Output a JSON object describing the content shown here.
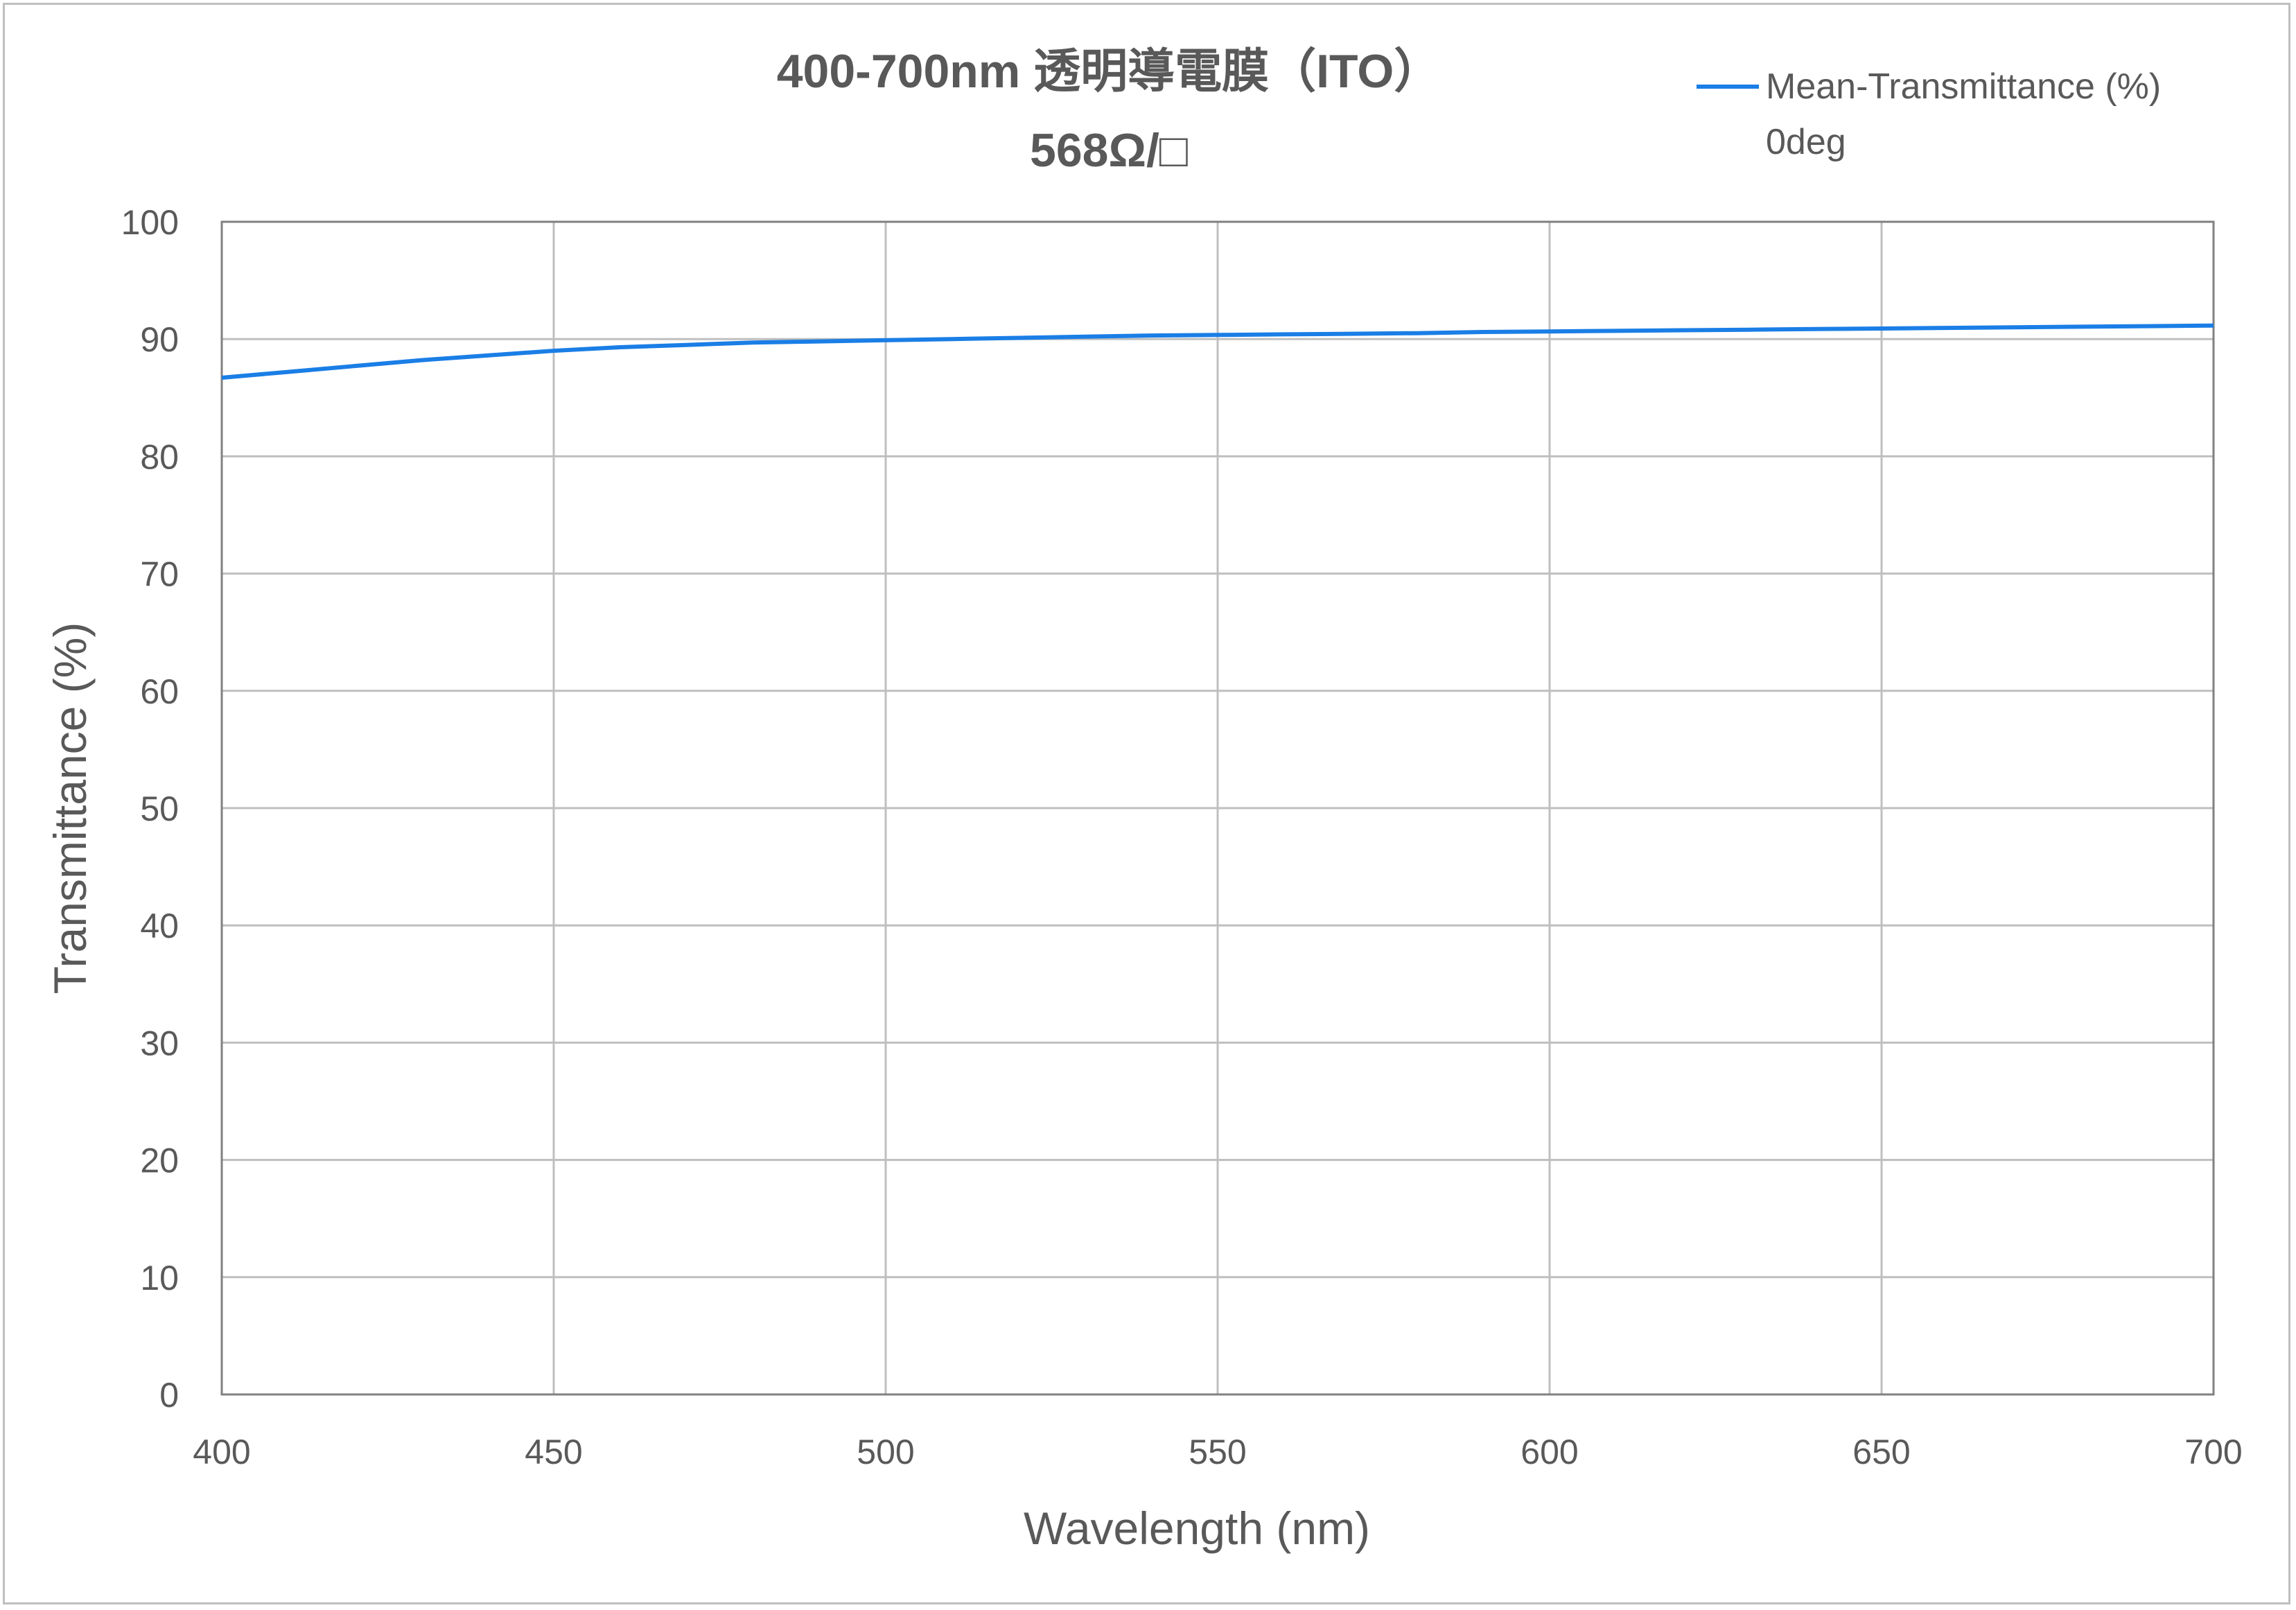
{
  "chart_data": {
    "type": "line",
    "title": "400-700nm 透明導電膜（ITO）",
    "subtitle": "568Ω/□",
    "xlabel": "Wavelength (nm)",
    "ylabel": "Transmittance (%)",
    "xlim": [
      400,
      700
    ],
    "ylim": [
      0,
      100
    ],
    "x_ticks": [
      "400",
      "450",
      "500",
      "550",
      "600",
      "650",
      "700"
    ],
    "y_ticks": [
      "0",
      "10",
      "20",
      "30",
      "40",
      "50",
      "60",
      "70",
      "80",
      "90",
      "100"
    ],
    "grid": true,
    "legend_position": "top-right",
    "series": [
      {
        "name": "Mean-Transmittance (%) 0deg",
        "legend_line1": "Mean-Transmittance (%)",
        "legend_line2": "0deg",
        "color": "#1a7ee6",
        "x": [
          400,
          410,
          420,
          430,
          440,
          450,
          460,
          470,
          480,
          490,
          500,
          510,
          520,
          530,
          540,
          550,
          560,
          570,
          580,
          590,
          600,
          610,
          620,
          630,
          640,
          650,
          660,
          670,
          680,
          690,
          700
        ],
        "y": [
          86.7,
          87.2,
          87.7,
          88.2,
          88.6,
          89.0,
          89.3,
          89.5,
          89.7,
          89.8,
          89.9,
          90.0,
          90.1,
          90.2,
          90.3,
          90.35,
          90.4,
          90.45,
          90.5,
          90.6,
          90.65,
          90.7,
          90.75,
          90.8,
          90.85,
          90.9,
          90.95,
          91.0,
          91.05,
          91.1,
          91.15
        ]
      }
    ]
  }
}
